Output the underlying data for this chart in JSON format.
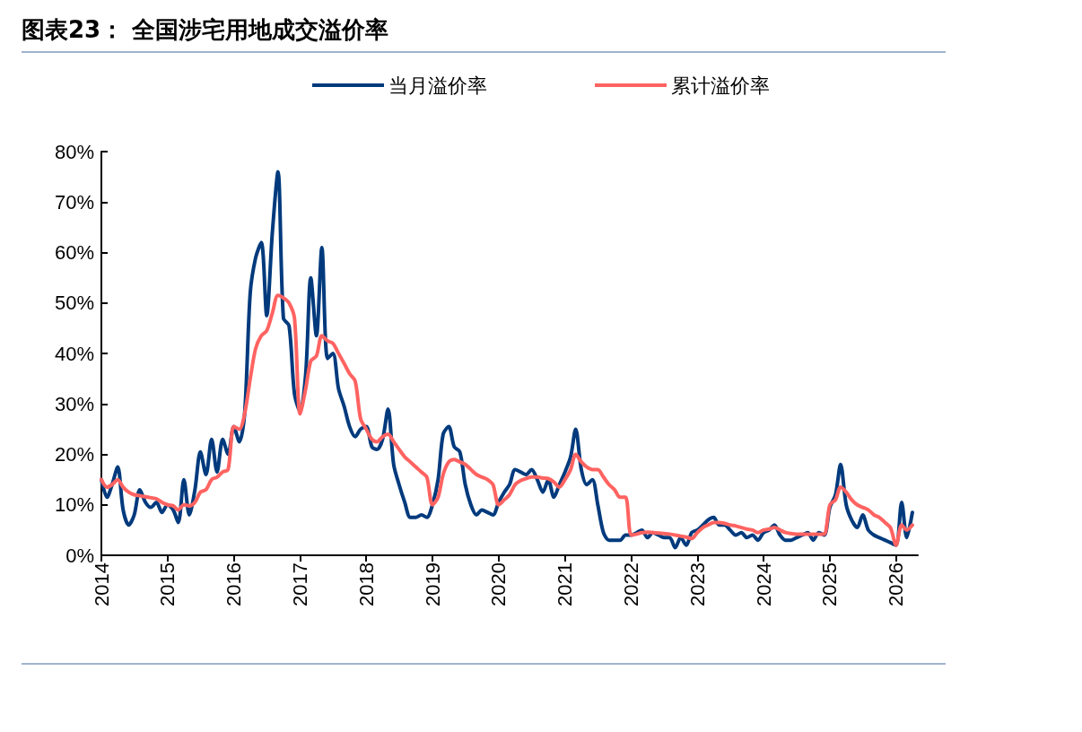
{
  "chart_data": {
    "type": "line",
    "title": "图表23：  全国涉宅用地成交溢价率",
    "x": [
      "2014-01",
      "2014-02",
      "2014-03",
      "2014-04",
      "2014-05",
      "2014-06",
      "2014-07",
      "2014-08",
      "2014-09",
      "2014-10",
      "2014-11",
      "2014-12",
      "2015-01",
      "2015-02",
      "2015-03",
      "2015-04",
      "2015-05",
      "2015-06",
      "2015-07",
      "2015-08",
      "2015-09",
      "2015-10",
      "2015-11",
      "2015-12",
      "2016-01",
      "2016-02",
      "2016-03",
      "2016-04",
      "2016-05",
      "2016-06",
      "2016-07",
      "2016-08",
      "2016-09",
      "2016-10",
      "2016-11",
      "2016-12",
      "2017-01",
      "2017-02",
      "2017-03",
      "2017-04",
      "2017-05",
      "2017-06",
      "2017-07",
      "2017-08",
      "2017-09",
      "2017-10",
      "2017-11",
      "2017-12",
      "2018-01",
      "2018-02",
      "2018-03",
      "2018-04",
      "2018-05",
      "2018-06",
      "2018-07",
      "2018-08",
      "2018-09",
      "2018-10",
      "2018-11",
      "2018-12",
      "2019-01",
      "2019-02",
      "2019-03",
      "2019-04",
      "2019-05",
      "2019-06",
      "2019-07",
      "2019-08",
      "2019-09",
      "2019-10",
      "2019-11",
      "2019-12",
      "2020-01",
      "2020-02",
      "2020-03",
      "2020-04",
      "2020-05",
      "2020-06",
      "2020-07",
      "2020-08",
      "2020-09",
      "2020-10",
      "2020-11",
      "2020-12",
      "2021-01",
      "2021-02",
      "2021-03",
      "2021-04",
      "2021-05",
      "2021-06",
      "2021-07",
      "2021-08",
      "2021-09",
      "2021-10",
      "2021-11",
      "2021-12",
      "2022-01",
      "2022-02",
      "2022-03",
      "2022-04",
      "2022-05",
      "2022-06",
      "2022-07",
      "2022-08",
      "2022-09",
      "2022-10",
      "2022-11",
      "2022-12",
      "2023-01",
      "2023-02",
      "2023-03",
      "2023-04",
      "2023-05",
      "2023-06",
      "2023-07",
      "2023-08",
      "2023-09",
      "2023-10",
      "2023-11",
      "2023-12",
      "2024-01",
      "2024-02",
      "2024-03",
      "2024-04",
      "2024-05",
      "2024-06",
      "2024-07",
      "2024-08",
      "2024-09",
      "2024-10",
      "2024-11",
      "2024-12",
      "2025-01",
      "2025-02",
      "2025-03",
      "2025-04",
      "2025-05",
      "2025-06",
      "2025-07",
      "2025-08",
      "2025-09",
      "2025-10",
      "2025-11",
      "2025-12",
      "2026-01",
      "2026-02",
      "2026-03",
      "2026-04"
    ],
    "series": [
      {
        "name": "当月溢价率",
        "color": "#003a7d",
        "values": [
          15,
          11.5,
          14,
          17.5,
          9,
          6,
          8,
          13,
          10.5,
          9.5,
          10.5,
          8.5,
          10,
          9,
          6.5,
          15,
          8,
          13,
          20.5,
          16,
          23,
          16.5,
          23,
          20,
          25.5,
          22.5,
          28,
          52,
          59,
          62,
          47.5,
          64,
          76,
          47,
          45.5,
          32,
          28.5,
          36,
          55,
          43.5,
          61,
          39,
          40,
          33,
          29.5,
          25.5,
          23.5,
          25,
          25.5,
          21.5,
          21,
          23,
          29,
          18,
          14,
          10.5,
          7.5,
          7.5,
          8,
          7.5,
          10,
          15,
          24,
          25.5,
          21.5,
          20.5,
          14,
          10,
          8,
          9,
          8.5,
          8,
          10.5,
          12.5,
          14,
          17,
          16.5,
          16,
          17,
          15,
          12.5,
          15,
          11.5,
          14,
          16.5,
          19.5,
          25,
          17,
          14,
          15,
          10,
          4.5,
          3,
          3,
          3,
          4,
          4,
          4.5,
          5,
          3.5,
          4.5,
          4,
          3.5,
          3.5,
          1.5,
          3.5,
          2,
          4.5,
          5,
          6,
          7,
          7.5,
          6,
          6,
          5,
          4,
          4.5,
          3.5,
          4,
          3,
          4.5,
          5,
          6,
          4,
          3,
          3,
          3.5,
          4,
          4.5,
          3,
          4.5,
          4,
          9.5,
          12,
          18,
          10,
          7,
          5.5,
          8,
          5,
          4,
          3.5,
          3,
          2.5,
          2,
          10.5,
          3.5,
          8.5
        ]
      },
      {
        "name": "累计溢价率",
        "color": "#ff6361",
        "values": [
          15,
          13.5,
          14,
          15,
          13.5,
          12.5,
          12,
          11.8,
          11.6,
          11.4,
          11.2,
          10.5,
          10,
          9.8,
          9,
          10,
          9.8,
          10.5,
          12.5,
          13,
          15,
          15.5,
          16.5,
          17,
          25.5,
          25,
          28,
          35,
          41,
          43.5,
          44.5,
          48,
          51.5,
          51,
          50,
          47,
          28,
          33,
          38.5,
          39.5,
          43.5,
          42.5,
          42,
          40,
          38,
          36,
          34.5,
          27,
          25,
          23,
          22.5,
          23.5,
          24,
          22.5,
          21,
          19.5,
          18.5,
          17.5,
          16.5,
          15.5,
          10,
          11.5,
          16,
          18.5,
          19,
          18.5,
          18,
          17,
          16,
          15.5,
          15,
          14,
          10,
          11,
          12,
          14,
          14.8,
          15.2,
          15.5,
          15.5,
          15.3,
          15.2,
          14.5,
          13.5,
          15,
          17,
          20,
          18.5,
          17.5,
          17,
          17,
          15.5,
          14,
          13,
          11.5,
          11.5,
          4,
          4.2,
          4.5,
          4.6,
          4.5,
          4.4,
          4.3,
          4.2,
          4,
          3.8,
          3.6,
          3.3,
          4.5,
          5.5,
          6,
          6.5,
          6.5,
          6.3,
          6,
          5.8,
          5.5,
          5.2,
          5,
          4.5,
          5,
          5.2,
          5.5,
          5,
          4.5,
          4.3,
          4.2,
          4.2,
          4.2,
          4.2,
          4.2,
          4.2,
          10,
          11,
          13.5,
          12.5,
          11,
          10,
          9.5,
          9,
          8,
          7.5,
          6.5,
          5.5,
          2,
          6,
          5,
          6
        ]
      }
    ],
    "xlim": [
      "2014-01",
      "2026-05"
    ],
    "xticks": [
      {
        "value": "2014",
        "label": "2014"
      },
      {
        "value": "2015",
        "label": "2015"
      },
      {
        "value": "2016",
        "label": "2016"
      },
      {
        "value": "2017",
        "label": "2017"
      },
      {
        "value": "2018",
        "label": "2018"
      },
      {
        "value": "2019",
        "label": "2019"
      },
      {
        "value": "2020",
        "label": "2020"
      },
      {
        "value": "2021",
        "label": "2021"
      },
      {
        "value": "2022",
        "label": "2022"
      },
      {
        "value": "2023",
        "label": "2023"
      },
      {
        "value": "2024",
        "label": "2024"
      },
      {
        "value": "2025",
        "label": "2025"
      },
      {
        "value": "2026",
        "label": "2026"
      }
    ],
    "ylim": [
      0,
      80
    ],
    "yticks": [
      {
        "value": 0,
        "label": "0%"
      },
      {
        "value": 10,
        "label": "10%"
      },
      {
        "value": 20,
        "label": "20%"
      },
      {
        "value": 30,
        "label": "30%"
      },
      {
        "value": 40,
        "label": "40%"
      },
      {
        "value": 50,
        "label": "50%"
      },
      {
        "value": 60,
        "label": "60%"
      },
      {
        "value": 70,
        "label": "70%"
      },
      {
        "value": 80,
        "label": "80%"
      }
    ],
    "grid": false,
    "legend": "top",
    "marker": "none",
    "line_style": "solid"
  }
}
